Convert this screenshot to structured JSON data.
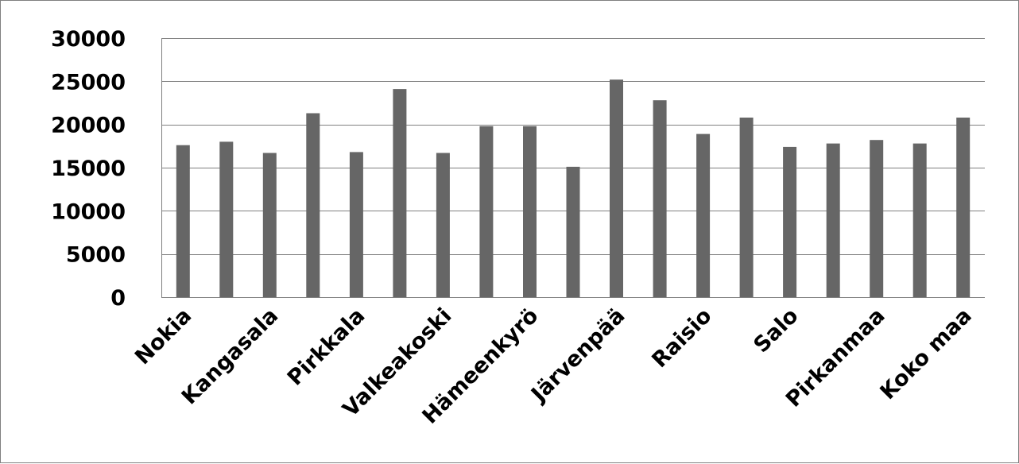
{
  "chart_data": {
    "type": "bar",
    "title": "",
    "xlabel": "",
    "ylabel": "",
    "ylim": [
      0,
      30000
    ],
    "yticks": [
      0,
      5000,
      10000,
      15000,
      20000,
      25000,
      30000
    ],
    "grid": true,
    "legend": "none",
    "colors": {
      "bar": "#666666",
      "grid": "#808080",
      "axis": "#808080",
      "text": "#000000"
    },
    "categories": [
      "Nokia",
      "",
      "Kangasala",
      "",
      "Pirkkala",
      "",
      "Valkeakoski",
      "",
      "Hämeenkyrö",
      "",
      "Järvenpää",
      "",
      "Raisio",
      "",
      "Salo",
      "",
      "Pirkanmaa",
      "",
      "Koko maa"
    ],
    "values": [
      17600,
      18000,
      16700,
      21300,
      16800,
      24100,
      16700,
      19800,
      19800,
      15100,
      25200,
      22800,
      18900,
      20800,
      17400,
      17800,
      18200,
      17800,
      20800
    ]
  }
}
